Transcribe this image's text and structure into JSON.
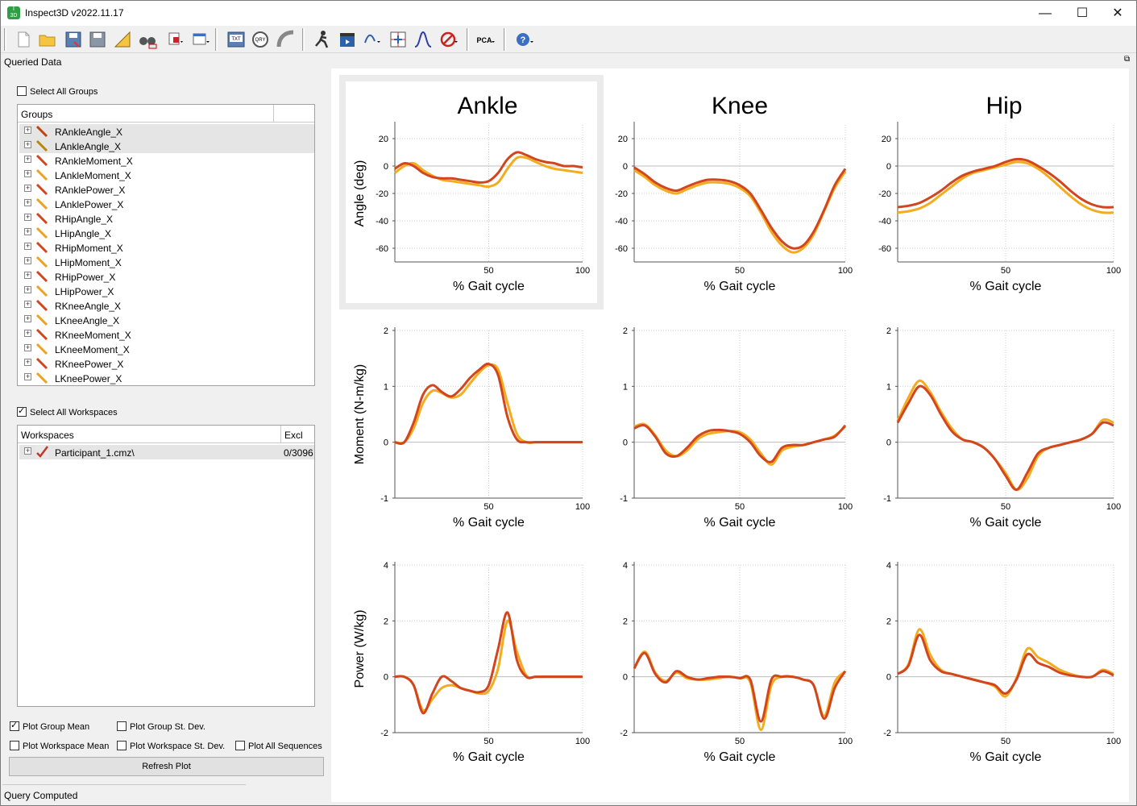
{
  "window": {
    "title": "Inspect3D v2022.11.17",
    "app_icon": "inspect3d-app-icon",
    "controls": {
      "minimize": "—",
      "maximize": "☐",
      "close": "✕"
    }
  },
  "toolbar": {
    "items": [
      "new-file-icon",
      "open-folder-icon",
      "save-icon",
      "save-as-icon",
      "measure-icon",
      "binoculars-icon",
      "export-dropdown-icon",
      "window-dropdown-icon",
      "txt-export-icon",
      "qry-icon",
      "pipe-icon",
      "walker-icon",
      "clapper-icon",
      "curve-dropdown-icon",
      "grid-icon",
      "bell-curve-icon",
      "filter-dropdown-icon",
      "pca-dropdown-icon",
      "help-dropdown-icon"
    ],
    "txt_label": "TXT",
    "qry_label": "QRY",
    "pca_label": "PCA"
  },
  "dock": {
    "title": "Queried Data",
    "float_icon": "⧉"
  },
  "groups": {
    "select_all_label": "Select All Groups",
    "select_all_checked": false,
    "header": "Groups",
    "items": [
      {
        "label": "RAnkleAngle_X",
        "color": "#c2410c",
        "selected": true
      },
      {
        "label": "LAnkleAngle_X",
        "color": "#b8860b",
        "selected": true
      },
      {
        "label": "RAnkleMoment_X",
        "color": "#d2451e",
        "selected": false
      },
      {
        "label": "LAnkleMoment_X",
        "color": "#f0a020",
        "selected": false
      },
      {
        "label": "RAnklePower_X",
        "color": "#d2451e",
        "selected": false
      },
      {
        "label": "LAnklePower_X",
        "color": "#f0a020",
        "selected": false
      },
      {
        "label": "RHipAngle_X",
        "color": "#d2451e",
        "selected": false
      },
      {
        "label": "LHipAngle_X",
        "color": "#f0a020",
        "selected": false
      },
      {
        "label": "RHipMoment_X",
        "color": "#d2451e",
        "selected": false
      },
      {
        "label": "LHipMoment_X",
        "color": "#f0a020",
        "selected": false
      },
      {
        "label": "RHipPower_X",
        "color": "#d2451e",
        "selected": false
      },
      {
        "label": "LHipPower_X",
        "color": "#f0a020",
        "selected": false
      },
      {
        "label": "RKneeAngle_X",
        "color": "#d2451e",
        "selected": false
      },
      {
        "label": "LKneeAngle_X",
        "color": "#f0a020",
        "selected": false
      },
      {
        "label": "RKneeMoment_X",
        "color": "#d2451e",
        "selected": false
      },
      {
        "label": "LKneeMoment_X",
        "color": "#f0a020",
        "selected": false
      },
      {
        "label": "RKneePower_X",
        "color": "#d2451e",
        "selected": false
      },
      {
        "label": "LKneePower_X",
        "color": "#f0a020",
        "selected": false
      }
    ]
  },
  "workspaces": {
    "select_all_label": "Select All Workspaces",
    "select_all_checked": true,
    "header": "Workspaces",
    "header_excl": "Excl",
    "items": [
      {
        "label": "Participant_1.cmz\\",
        "excl": "0/3096"
      }
    ]
  },
  "options": {
    "plot_group_mean": {
      "label": "Plot Group Mean",
      "checked": true
    },
    "plot_group_sd": {
      "label": "Plot Group St. Dev.",
      "checked": false
    },
    "plot_workspace_mean": {
      "label": "Plot Workspace Mean",
      "checked": false
    },
    "plot_workspace_sd": {
      "label": "Plot Workspace St. Dev.",
      "checked": false
    },
    "plot_all_sequences": {
      "label": "Plot All Sequences",
      "checked": false
    }
  },
  "refresh_label": "Refresh Plot",
  "status": "Query Computed",
  "chart_data": {
    "type": "line",
    "columns": [
      "Ankle",
      "Knee",
      "Hip"
    ],
    "row_ylabels": [
      "Angle (deg)",
      "Moment (N-m/kg)",
      "Power (W/kg)"
    ],
    "xlabel": "% Gait cycle",
    "xlim": [
      0,
      100
    ],
    "xticks": [
      50,
      100
    ],
    "row_yticks": [
      [
        20,
        0,
        -20,
        -40,
        -60
      ],
      [
        2,
        1,
        0,
        -1
      ],
      [
        4,
        2,
        0,
        -2
      ]
    ],
    "row_ylim": [
      [
        -70,
        30
      ],
      [
        -1,
        2
      ],
      [
        -2,
        4
      ]
    ],
    "series_colors": {
      "right": "#d2451e",
      "left": "#f2ac1e"
    },
    "x": [
      0,
      5,
      10,
      15,
      20,
      25,
      30,
      35,
      40,
      45,
      50,
      55,
      60,
      65,
      70,
      75,
      80,
      85,
      90,
      95,
      100
    ],
    "charts": [
      {
        "column": "Ankle",
        "row": "Angle",
        "right": [
          -2,
          2,
          0,
          -5,
          -8,
          -9,
          -9,
          -10,
          -11,
          -12,
          -11,
          -5,
          5,
          10,
          8,
          5,
          3,
          2,
          0,
          0,
          -1
        ],
        "left": [
          -5,
          0,
          2,
          -3,
          -7,
          -10,
          -11,
          -12,
          -13,
          -14,
          -15,
          -12,
          -2,
          6,
          6,
          3,
          0,
          -2,
          -3,
          -4,
          -5
        ]
      },
      {
        "column": "Knee",
        "row": "Angle",
        "right": [
          -1,
          -6,
          -12,
          -16,
          -18,
          -15,
          -12,
          -10,
          -10,
          -11,
          -14,
          -20,
          -32,
          -45,
          -55,
          -60,
          -58,
          -48,
          -32,
          -14,
          -2
        ],
        "left": [
          -3,
          -8,
          -14,
          -18,
          -20,
          -17,
          -14,
          -12,
          -12,
          -13,
          -16,
          -22,
          -34,
          -48,
          -58,
          -63,
          -60,
          -50,
          -33,
          -16,
          -4
        ]
      },
      {
        "column": "Hip",
        "row": "Angle",
        "right": [
          -30,
          -29,
          -27,
          -23,
          -18,
          -12,
          -7,
          -4,
          -2,
          0,
          3,
          5,
          4,
          0,
          -5,
          -11,
          -18,
          -24,
          -28,
          -30,
          -30
        ],
        "left": [
          -34,
          -33,
          -31,
          -27,
          -21,
          -15,
          -9,
          -5,
          -3,
          -1,
          1,
          3,
          2,
          -2,
          -8,
          -15,
          -22,
          -28,
          -32,
          -34,
          -34
        ]
      },
      {
        "column": "Ankle",
        "row": "Moment",
        "right": [
          0,
          0,
          0.35,
          0.85,
          1.02,
          0.9,
          0.82,
          0.95,
          1.15,
          1.3,
          1.4,
          1.2,
          0.45,
          0.05,
          0,
          0,
          0,
          0,
          0,
          0,
          0
        ],
        "left": [
          0,
          0,
          0.25,
          0.7,
          0.92,
          0.88,
          0.8,
          0.85,
          1.05,
          1.25,
          1.38,
          1.3,
          0.7,
          0.15,
          0,
          0,
          0,
          0,
          0,
          0,
          0
        ]
      },
      {
        "column": "Knee",
        "row": "Moment",
        "right": [
          0.25,
          0.3,
          0.1,
          -0.2,
          -0.25,
          -0.1,
          0.1,
          0.2,
          0.22,
          0.2,
          0.15,
          0,
          -0.25,
          -0.35,
          -0.1,
          -0.05,
          -0.05,
          0,
          0.05,
          0.1,
          0.3
        ],
        "left": [
          0.28,
          0.32,
          0.12,
          -0.15,
          -0.25,
          -0.15,
          0.05,
          0.15,
          0.18,
          0.2,
          0.18,
          0.05,
          -0.2,
          -0.4,
          -0.15,
          -0.08,
          -0.05,
          0,
          0.05,
          0.12,
          0.28
        ]
      },
      {
        "column": "Hip",
        "row": "Moment",
        "right": [
          0.35,
          0.7,
          1.0,
          0.85,
          0.5,
          0.2,
          0.05,
          0,
          -0.1,
          -0.3,
          -0.6,
          -0.85,
          -0.55,
          -0.2,
          -0.1,
          -0.05,
          0,
          0.05,
          0.15,
          0.35,
          0.3
        ],
        "left": [
          0.38,
          0.8,
          1.1,
          0.9,
          0.55,
          0.25,
          0.05,
          0,
          -0.1,
          -0.3,
          -0.55,
          -0.85,
          -0.65,
          -0.25,
          -0.1,
          -0.05,
          0,
          0.05,
          0.15,
          0.4,
          0.35
        ]
      },
      {
        "column": "Ankle",
        "row": "Power",
        "right": [
          0,
          0,
          -0.3,
          -1.3,
          -0.6,
          0,
          -0.15,
          -0.4,
          -0.5,
          -0.55,
          -0.3,
          1.0,
          2.3,
          0.6,
          0,
          0,
          0,
          0,
          0,
          0,
          0
        ],
        "left": [
          0,
          0,
          -0.3,
          -1.2,
          -0.8,
          -0.4,
          -0.3,
          -0.4,
          -0.5,
          -0.6,
          -0.5,
          0.3,
          2.0,
          0.9,
          0.05,
          0,
          0,
          0,
          0,
          0,
          0
        ]
      },
      {
        "column": "Knee",
        "row": "Power",
        "right": [
          0.3,
          0.85,
          0.1,
          -0.2,
          0.2,
          0,
          -0.1,
          -0.05,
          0,
          0,
          -0.05,
          -0.1,
          -1.6,
          -0.1,
          0,
          0,
          -0.1,
          -0.3,
          -1.5,
          -0.4,
          0.2
        ],
        "left": [
          0.3,
          0.9,
          0.15,
          -0.15,
          0.15,
          -0.05,
          -0.1,
          -0.1,
          -0.05,
          0,
          -0.05,
          -0.2,
          -1.9,
          -0.3,
          0,
          0,
          -0.1,
          -0.3,
          -1.4,
          -0.2,
          0.2
        ]
      },
      {
        "column": "Hip",
        "row": "Power",
        "right": [
          0.1,
          0.4,
          1.5,
          0.6,
          0.2,
          0.1,
          0,
          -0.1,
          -0.2,
          -0.3,
          -0.6,
          -0.1,
          0.8,
          0.5,
          0.35,
          0.15,
          0.05,
          0,
          0,
          0.2,
          0.05
        ],
        "left": [
          0.1,
          0.45,
          1.7,
          0.8,
          0.25,
          0.1,
          0,
          -0.1,
          -0.2,
          -0.35,
          -0.7,
          -0.05,
          1.0,
          0.7,
          0.5,
          0.25,
          0.1,
          0,
          0,
          0.25,
          0.1
        ]
      }
    ]
  }
}
